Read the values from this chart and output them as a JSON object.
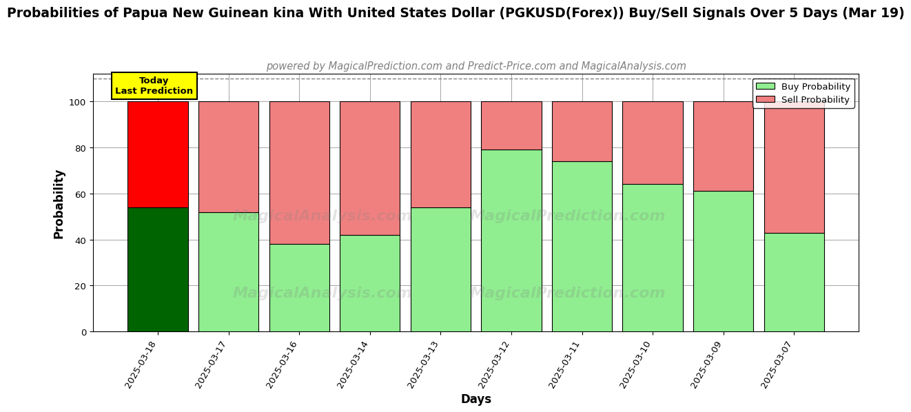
{
  "title": "Probabilities of Papua New Guinean kina With United States Dollar (PGKUSD(Forex)) Buy/Sell Signals Over 5 Days (Mar 19)",
  "subtitle": "powered by MagicalPrediction.com and Predict-Price.com and MagicalAnalysis.com",
  "xlabel": "Days",
  "ylabel": "Probability",
  "days": [
    "2025-03-18",
    "2025-03-17",
    "2025-03-16",
    "2025-03-14",
    "2025-03-13",
    "2025-03-12",
    "2025-03-11",
    "2025-03-10",
    "2025-03-09",
    "2025-03-07"
  ],
  "buy_values": [
    54,
    52,
    38,
    42,
    54,
    79,
    74,
    64,
    61,
    43
  ],
  "sell_values": [
    46,
    48,
    62,
    58,
    46,
    21,
    26,
    36,
    39,
    57
  ],
  "today_buy_color": "#006400",
  "today_sell_color": "#ff0000",
  "buy_color": "#90EE90",
  "sell_color": "#F08080",
  "today_annotation": "Today\nLast Prediction",
  "today_annotation_bg": "#ffff00",
  "watermark1": "MagicalAnalysis.com",
  "watermark2": "MagicalPrediction.com",
  "ylim": [
    0,
    112
  ],
  "yticks": [
    0,
    20,
    40,
    60,
    80,
    100
  ],
  "legend_buy_label": "Buy Probability",
  "legend_sell_label": "Sell Probability",
  "bar_width": 0.85,
  "dashed_line_y": 110,
  "title_fontsize": 13.5,
  "subtitle_fontsize": 10.5,
  "axis_label_fontsize": 12,
  "tick_fontsize": 9.5
}
